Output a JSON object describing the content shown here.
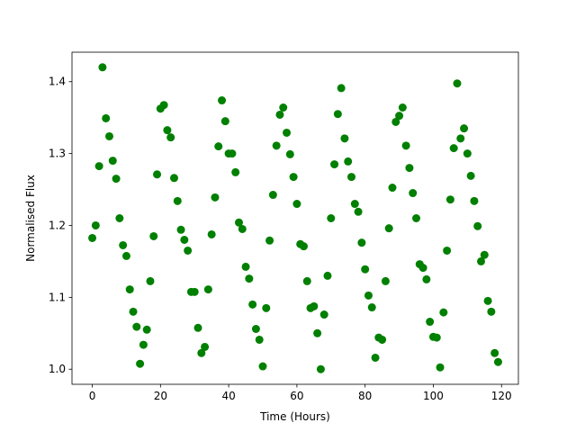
{
  "chart_data": {
    "type": "scatter",
    "xlabel": "Time (Hours)",
    "ylabel": "Normalised Flux",
    "color": "#008000",
    "x": [
      0,
      1,
      2,
      3,
      4,
      5,
      6,
      7,
      8,
      9,
      10,
      11,
      12,
      13,
      14,
      15,
      16,
      17,
      18,
      19,
      20,
      21,
      22,
      23,
      24,
      25,
      26,
      27,
      28,
      29,
      30,
      31,
      32,
      33,
      34,
      35,
      36,
      37,
      38,
      39,
      40,
      41,
      42,
      43,
      44,
      45,
      46,
      47,
      48,
      49,
      50,
      51,
      52,
      53,
      54,
      55,
      56,
      57,
      58,
      59,
      60,
      61,
      62,
      63,
      64,
      65,
      66,
      67,
      68,
      69,
      70,
      71,
      72,
      73,
      74,
      75,
      76,
      77,
      78,
      79,
      80,
      81,
      82,
      83,
      84,
      85,
      86,
      87,
      88,
      89,
      90,
      91,
      92,
      93,
      94,
      95,
      96,
      97,
      98,
      99,
      100,
      101,
      102,
      103,
      104,
      105,
      106,
      107,
      108,
      109,
      110,
      111,
      112,
      113,
      114,
      115,
      116,
      117,
      118,
      119
    ],
    "values": [
      1.1825,
      1.2,
      1.2825,
      1.42,
      1.349,
      1.324,
      1.29,
      1.265,
      1.21,
      1.1725,
      1.1575,
      1.111,
      1.08,
      1.059,
      1.0075,
      1.034,
      1.055,
      1.1225,
      1.185,
      1.271,
      1.3625,
      1.3675,
      1.3325,
      1.3225,
      1.266,
      1.234,
      1.194,
      1.18,
      1.165,
      1.1075,
      1.1075,
      1.0575,
      1.0225,
      1.031,
      1.111,
      1.1875,
      1.239,
      1.31,
      1.374,
      1.345,
      1.3,
      1.3,
      1.274,
      1.204,
      1.195,
      1.1425,
      1.126,
      1.09,
      1.056,
      1.041,
      1.004,
      1.085,
      1.179,
      1.2425,
      1.311,
      1.354,
      1.364,
      1.329,
      1.299,
      1.2675,
      1.23,
      1.174,
      1.171,
      1.1225,
      1.085,
      1.0875,
      1.05,
      1.0,
      1.076,
      1.13,
      1.21,
      1.285,
      1.355,
      1.391,
      1.321,
      1.289,
      1.2675,
      1.23,
      1.219,
      1.176,
      1.139,
      1.1025,
      1.086,
      1.016,
      1.044,
      1.041,
      1.1225,
      1.196,
      1.2525,
      1.344,
      1.3525,
      1.364,
      1.311,
      1.28,
      1.245,
      1.21,
      1.146,
      1.141,
      1.125,
      1.066,
      1.045,
      1.044,
      1.0025,
      1.079,
      1.165,
      1.236,
      1.3075,
      1.3975,
      1.321,
      1.335,
      1.3,
      1.269,
      1.234,
      1.199,
      1.15,
      1.159,
      1.095,
      1.08,
      1.0225,
      1.01
    ],
    "xlim": [
      -5.95,
      124.95
    ],
    "ylim": [
      0.979,
      1.441
    ],
    "xticks": [
      0,
      20,
      40,
      60,
      80,
      100,
      120
    ],
    "yticks": [
      {
        "value": 1,
        "label": "1.0"
      },
      1.1,
      1.2,
      1.3,
      1.4
    ]
  }
}
